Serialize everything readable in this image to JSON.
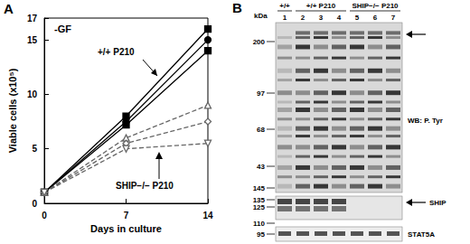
{
  "chart_data": {
    "type": "line",
    "x_label": "Days in culture",
    "y_label": "Viable cells (x10⁵)",
    "x": [
      0,
      7,
      14
    ],
    "xlim": [
      0,
      14
    ],
    "xticks": [
      0,
      7,
      14
    ],
    "ylim": [
      0,
      17
    ],
    "yticks": [
      0,
      5,
      10,
      15
    ],
    "grid": false,
    "annotations": [
      "A",
      "-GF",
      "+/+ P210",
      "SHIP−/− P210"
    ],
    "series": [
      {
        "color": "#000000",
        "marker": "square",
        "line_style": "solid",
        "values": [
          1,
          8,
          16
        ]
      },
      {
        "color": "#000000",
        "marker": "circle",
        "line_style": "solid",
        "values": [
          1,
          7.5,
          15
        ]
      },
      {
        "color": "#000000",
        "marker": "square",
        "line_style": "solid",
        "values": [
          1,
          7.2,
          14
        ]
      },
      {
        "color": "#666666",
        "marker": "open-triangle",
        "line_style": "dashed",
        "values": [
          1,
          6,
          9
        ]
      },
      {
        "color": "#666666",
        "marker": "open-diamond",
        "line_style": "dashed",
        "values": [
          1,
          5.5,
          7.5
        ]
      },
      {
        "color": "#666666",
        "marker": "open-triangle-down",
        "line_style": "dashed",
        "values": [
          1,
          5,
          5.5
        ]
      }
    ]
  },
  "blot": {
    "panel_label": "B",
    "unit_label": "kDa",
    "lanes": [
      1,
      2,
      3,
      4,
      5,
      6,
      7
    ],
    "groups": [
      {
        "label": "+/+",
        "first": 1,
        "last": 1
      },
      {
        "label": "+/+ P210",
        "first": 2,
        "last": 4
      },
      {
        "label": "SHIP−/− P210",
        "first": 5,
        "last": 7
      }
    ],
    "panels": [
      {
        "label": "WB: P. Tyr",
        "markers": [
          200,
          97,
          68,
          43,
          145
        ]
      },
      {
        "label": "SHIP",
        "markers": [
          135,
          125,
          110
        ]
      },
      {
        "label": "STAT5A",
        "markers": [
          95
        ]
      }
    ]
  }
}
